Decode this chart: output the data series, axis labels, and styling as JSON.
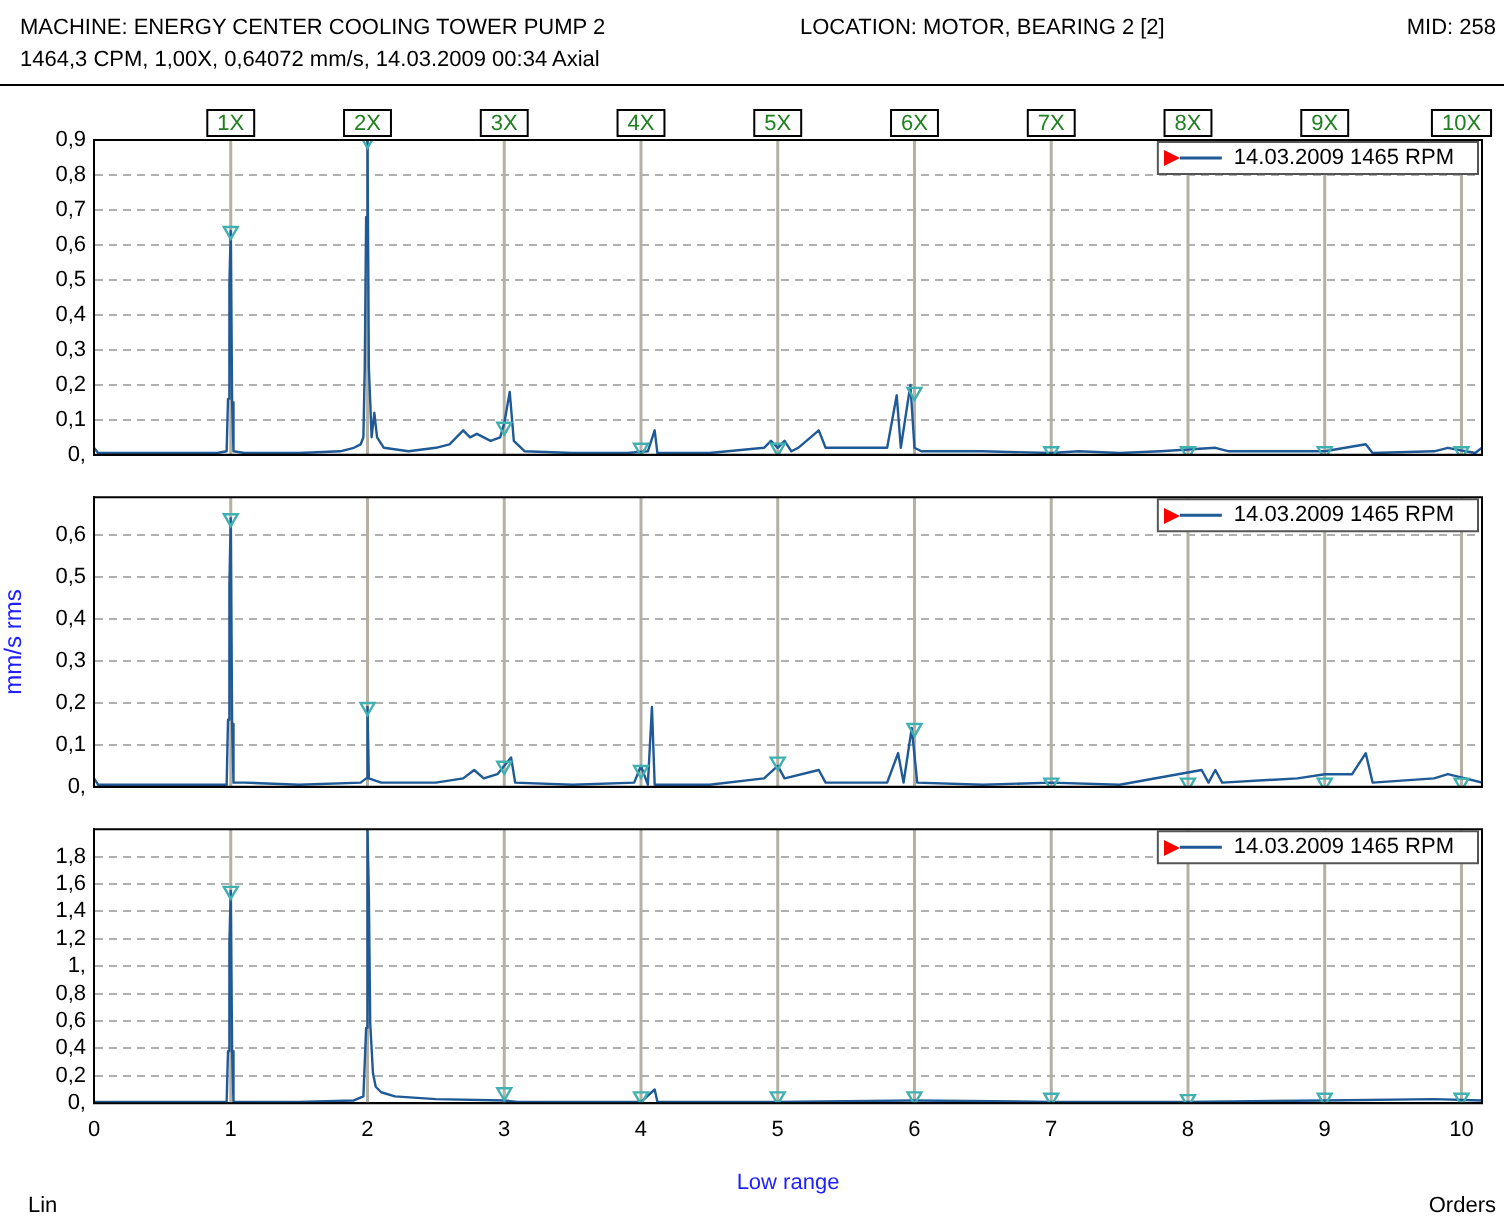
{
  "chart_data": [
    {
      "type": "line",
      "title": "MACHINE: ENERGY CENTER COOLING TOWER PUMP 2",
      "subtitle": "1464,3 CPM, 1,00X, 0,64072 mm/s, 14.03.2009 00:34  Axial",
      "annotations": [
        "LOCATION: MOTOR, BEARING 2 [2]",
        "MID: 258"
      ],
      "xlim": [
        0,
        10.15
      ],
      "xticks": [
        0,
        1,
        2,
        3,
        4,
        5,
        6,
        7,
        8,
        9,
        10
      ],
      "ylim": [
        0,
        0.9
      ],
      "yticks": [
        {
          "value": 0,
          "label": "0,"
        },
        {
          "value": 0.1,
          "label": "0,1"
        },
        {
          "value": 0.2,
          "label": "0,2"
        },
        {
          "value": 0.3,
          "label": "0,3"
        },
        {
          "value": 0.4,
          "label": "0,4"
        },
        {
          "value": 0.5,
          "label": "0,5"
        },
        {
          "value": 0.6,
          "label": "0,6"
        },
        {
          "value": 0.7,
          "label": "0,7"
        },
        {
          "value": 0.8,
          "label": "0,8"
        },
        {
          "value": 0.9,
          "label": "0,9"
        }
      ],
      "tick_labels": "y",
      "grid": "y",
      "legend": "top right",
      "ref_lines": [
        {
          "axis": "x",
          "value": 1,
          "label": "1X",
          "color": "#b4b0a4"
        },
        {
          "axis": "x",
          "value": 2,
          "label": "2X",
          "color": "#b4b0a4"
        },
        {
          "axis": "x",
          "value": 3,
          "label": "3X",
          "color": "#b4b0a4"
        },
        {
          "axis": "x",
          "value": 4,
          "label": "4X",
          "color": "#b4b0a4"
        },
        {
          "axis": "x",
          "value": 5,
          "label": "5X",
          "color": "#b4b0a4"
        },
        {
          "axis": "x",
          "value": 6,
          "label": "6X",
          "color": "#b4b0a4"
        },
        {
          "axis": "x",
          "value": 7,
          "label": "7X",
          "color": "#b4b0a4"
        },
        {
          "axis": "x",
          "value": 8,
          "label": "8X",
          "color": "#b4b0a4"
        },
        {
          "axis": "x",
          "value": 9,
          "label": "9X",
          "color": "#b4b0a4"
        },
        {
          "axis": "x",
          "value": 10,
          "label": "10X",
          "color": "#b4b0a4"
        }
      ],
      "series": [
        {
          "type": "line",
          "name": "14.03.2009 1465 RPM",
          "color": "#1f5a96",
          "marker": "none",
          "x": [
            0,
            0.03,
            0.5,
            0.9,
            0.97,
            0.98,
            0.99,
            1.0,
            1.01,
            1.02,
            1.1,
            1.5,
            1.8,
            1.9,
            1.95,
            1.97,
            1.98,
            1.99,
            2.0,
            2.01,
            2.03,
            2.05,
            2.07,
            2.12,
            2.3,
            2.5,
            2.6,
            2.7,
            2.75,
            2.8,
            2.9,
            2.97,
            3.0,
            3.04,
            3.07,
            3.15,
            3.5,
            3.9,
            4.05,
            4.1,
            4.12,
            4.5,
            4.9,
            4.95,
            5.0,
            5.05,
            5.1,
            5.15,
            5.3,
            5.35,
            5.5,
            5.8,
            5.87,
            5.9,
            5.97,
            6.0,
            6.05,
            6.5,
            7.0,
            7.2,
            7.5,
            7.8,
            8.2,
            8.3,
            8.8,
            9.0,
            9.3,
            9.35,
            9.8,
            9.9,
            10.1,
            10.15
          ],
          "values": [
            0.02,
            0.005,
            0.005,
            0.005,
            0.01,
            0.16,
            0.49,
            0.64,
            0.15,
            0.01,
            0.005,
            0.005,
            0.01,
            0.02,
            0.03,
            0.05,
            0.25,
            0.68,
            0.9,
            0.25,
            0.05,
            0.12,
            0.05,
            0.02,
            0.01,
            0.02,
            0.03,
            0.07,
            0.05,
            0.06,
            0.04,
            0.05,
            0.09,
            0.18,
            0.04,
            0.01,
            0.005,
            0.005,
            0.01,
            0.07,
            0.005,
            0.005,
            0.02,
            0.04,
            0.02,
            0.04,
            0.01,
            0.02,
            0.07,
            0.02,
            0.02,
            0.02,
            0.17,
            0.02,
            0.2,
            0.02,
            0.01,
            0.01,
            0.005,
            0.01,
            0.005,
            0.01,
            0.02,
            0.01,
            0.01,
            0.01,
            0.03,
            0.005,
            0.01,
            0.02,
            0.005,
            0.02
          ]
        },
        {
          "type": "scatter",
          "color": "#40b0b0",
          "marker": "triangle",
          "x": [
            1,
            2,
            3,
            4,
            5,
            6,
            7,
            8,
            9,
            10
          ],
          "values": [
            0.64,
            0.9,
            0.08,
            0.02,
            0.02,
            0.18,
            0.01,
            0.01,
            0.01,
            0.01
          ]
        }
      ]
    },
    {
      "type": "line",
      "ylabel": "mm/s rms",
      "xlim": [
        0,
        10.15
      ],
      "xticks": [
        0,
        1,
        2,
        3,
        4,
        5,
        6,
        7,
        8,
        9,
        10
      ],
      "ylim": [
        0,
        0.69
      ],
      "yticks": [
        {
          "value": 0,
          "label": "0,"
        },
        {
          "value": 0.1,
          "label": "0,1"
        },
        {
          "value": 0.2,
          "label": "0,2"
        },
        {
          "value": 0.3,
          "label": "0,3"
        },
        {
          "value": 0.4,
          "label": "0,4"
        },
        {
          "value": 0.5,
          "label": "0,5"
        },
        {
          "value": 0.6,
          "label": "0,6"
        }
      ],
      "tick_labels": "y",
      "grid": "y",
      "legend": "top right",
      "ref_lines": [
        {
          "axis": "x",
          "value": 1,
          "color": "#b4b0a4"
        },
        {
          "axis": "x",
          "value": 2,
          "color": "#b4b0a4"
        },
        {
          "axis": "x",
          "value": 3,
          "color": "#b4b0a4"
        },
        {
          "axis": "x",
          "value": 4,
          "color": "#b4b0a4"
        },
        {
          "axis": "x",
          "value": 5,
          "color": "#b4b0a4"
        },
        {
          "axis": "x",
          "value": 6,
          "color": "#b4b0a4"
        },
        {
          "axis": "x",
          "value": 7,
          "color": "#b4b0a4"
        },
        {
          "axis": "x",
          "value": 8,
          "color": "#b4b0a4"
        },
        {
          "axis": "x",
          "value": 9,
          "color": "#b4b0a4"
        },
        {
          "axis": "x",
          "value": 10,
          "color": "#b4b0a4"
        }
      ],
      "series": [
        {
          "type": "line",
          "name": "14.03.2009 1465 RPM",
          "color": "#1f5a96",
          "marker": "none",
          "x": [
            0,
            0.03,
            0.97,
            0.98,
            0.99,
            1.0,
            1.01,
            1.02,
            1.1,
            1.5,
            1.95,
            1.99,
            2.0,
            2.01,
            2.1,
            2.5,
            2.7,
            2.78,
            2.85,
            2.95,
            3.05,
            3.08,
            3.5,
            3.95,
            4.0,
            4.05,
            4.08,
            4.1,
            4.5,
            4.9,
            5.0,
            5.05,
            5.3,
            5.35,
            5.8,
            5.88,
            5.92,
            5.98,
            6.02,
            6.5,
            7.0,
            7.5,
            8.1,
            8.15,
            8.2,
            8.25,
            8.8,
            9.0,
            9.2,
            9.3,
            9.35,
            9.8,
            9.9,
            10.15
          ],
          "values": [
            0.02,
            0.005,
            0.005,
            0.16,
            0.48,
            0.64,
            0.15,
            0.01,
            0.01,
            0.005,
            0.01,
            0.02,
            0.19,
            0.02,
            0.01,
            0.01,
            0.02,
            0.04,
            0.02,
            0.03,
            0.07,
            0.01,
            0.005,
            0.01,
            0.05,
            0.005,
            0.19,
            0.005,
            0.005,
            0.02,
            0.05,
            0.02,
            0.04,
            0.01,
            0.01,
            0.08,
            0.01,
            0.14,
            0.01,
            0.005,
            0.01,
            0.005,
            0.04,
            0.01,
            0.04,
            0.01,
            0.02,
            0.03,
            0.03,
            0.08,
            0.01,
            0.02,
            0.03,
            0.01
          ]
        },
        {
          "type": "scatter",
          "color": "#40b0b0",
          "marker": "triangle",
          "x": [
            1,
            2,
            3,
            4,
            5,
            6,
            7,
            8,
            9,
            10
          ],
          "values": [
            0.64,
            0.19,
            0.05,
            0.04,
            0.06,
            0.14,
            0.01,
            0.01,
            0.01,
            0.01
          ]
        }
      ]
    },
    {
      "type": "line",
      "xlabel": "Low range",
      "annotations": [
        "Lin",
        "Orders"
      ],
      "xlim": [
        0,
        10.15
      ],
      "xticks": [
        0,
        1,
        2,
        3,
        4,
        5,
        6,
        7,
        8,
        9,
        10
      ],
      "ylim": [
        0,
        2
      ],
      "yticks": [
        {
          "value": 0,
          "label": "0,"
        },
        {
          "value": 0.2,
          "label": "0,2"
        },
        {
          "value": 0.4,
          "label": "0,4"
        },
        {
          "value": 0.6,
          "label": "0,6"
        },
        {
          "value": 0.8,
          "label": "0,8"
        },
        {
          "value": 1,
          "label": "1,"
        },
        {
          "value": 1.2,
          "label": "1,2"
        },
        {
          "value": 1.4,
          "label": "1,4"
        },
        {
          "value": 1.6,
          "label": "1,6"
        },
        {
          "value": 1.8,
          "label": "1,8"
        }
      ],
      "grid": "y",
      "legend": "top right",
      "ref_lines": [
        {
          "axis": "x",
          "value": 1,
          "color": "#b4b0a4"
        },
        {
          "axis": "x",
          "value": 2,
          "color": "#b4b0a4"
        },
        {
          "axis": "x",
          "value": 3,
          "color": "#b4b0a4"
        },
        {
          "axis": "x",
          "value": 4,
          "color": "#b4b0a4"
        },
        {
          "axis": "x",
          "value": 5,
          "color": "#b4b0a4"
        },
        {
          "axis": "x",
          "value": 6,
          "color": "#b4b0a4"
        },
        {
          "axis": "x",
          "value": 7,
          "color": "#b4b0a4"
        },
        {
          "axis": "x",
          "value": 8,
          "color": "#b4b0a4"
        },
        {
          "axis": "x",
          "value": 9,
          "color": "#b4b0a4"
        },
        {
          "axis": "x",
          "value": 10,
          "color": "#b4b0a4"
        }
      ],
      "series": [
        {
          "type": "line",
          "name": "14.03.2009 1465 RPM",
          "color": "#1f5a96",
          "marker": "none",
          "x": [
            0,
            0.6,
            0.97,
            0.98,
            0.99,
            1.0,
            1.01,
            1.02,
            1.5,
            1.9,
            1.97,
            1.99,
            2.0,
            2.01,
            2.02,
            2.04,
            2.06,
            2.1,
            2.2,
            2.5,
            3.0,
            3.1,
            3.5,
            4.0,
            4.1,
            4.12,
            5.0,
            6.0,
            7.0,
            8.0,
            9.0,
            9.8,
            10.15
          ],
          "values": [
            0.01,
            0.01,
            0.01,
            0.38,
            1.17,
            1.55,
            0.38,
            0.01,
            0.01,
            0.02,
            0.05,
            0.55,
            2.0,
            1.52,
            0.58,
            0.22,
            0.12,
            0.08,
            0.05,
            0.03,
            0.02,
            0.01,
            0.01,
            0.01,
            0.1,
            0.01,
            0.01,
            0.02,
            0.01,
            0.01,
            0.02,
            0.03,
            0.02
          ]
        },
        {
          "type": "scatter",
          "color": "#40b0b0",
          "marker": "triangle",
          "x": [
            1,
            2,
            3,
            4,
            5,
            6,
            7,
            8,
            9,
            10
          ],
          "values": [
            1.55,
            null,
            0.08,
            0.05,
            0.05,
            0.05,
            0.04,
            0.03,
            0.04,
            0.04
          ]
        }
      ]
    }
  ]
}
